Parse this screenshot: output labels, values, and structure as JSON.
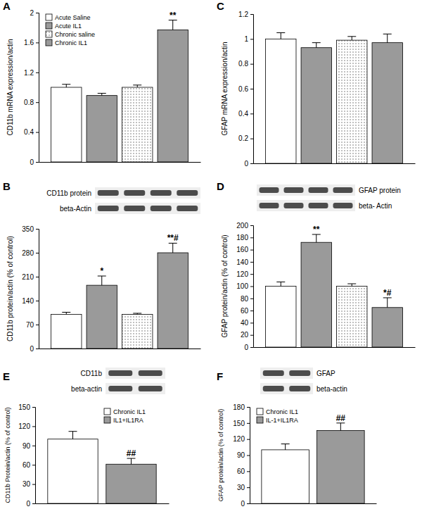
{
  "chart_data": [
    {
      "type": "bar",
      "panel_label": "A",
      "y_label": "CD11b mRNA expression/actin",
      "categories": [
        null
      ],
      "legend": "top-left",
      "series": [
        {
          "name": "Acute Saline",
          "color": "#ffffff",
          "values": [
            1.0
          ],
          "errors": [
            0.04
          ]
        },
        {
          "name": "Acute IL1",
          "color": "#9a9a9a",
          "values": [
            0.89
          ],
          "errors": [
            0.03
          ]
        },
        {
          "name": "Chronic saline",
          "color": "#ffffff",
          "marker": "dots",
          "values": [
            1.0
          ],
          "errors": [
            0.03
          ]
        },
        {
          "name": "Chronic IL1",
          "color": "#9a9a9a",
          "values": [
            1.77
          ],
          "errors": [
            0.13
          ],
          "annotations": [
            "**"
          ]
        }
      ],
      "ylim": [
        0,
        2
      ],
      "yticks": [
        0,
        0.4,
        0.8,
        1.2,
        1.6,
        2
      ]
    },
    {
      "type": "bar",
      "panel_label": "B",
      "y_label": "CD11b protein/actin (% of control)",
      "categories": [
        null
      ],
      "blot_labels": [
        "CD11b protein",
        "beta-Actin"
      ],
      "series": [
        {
          "color": "#ffffff",
          "values": [
            100
          ],
          "errors": [
            6
          ]
        },
        {
          "color": "#9a9a9a",
          "values": [
            185
          ],
          "errors": [
            27
          ],
          "annotations": [
            "*"
          ]
        },
        {
          "color": "#ffffff",
          "marker": "dots",
          "values": [
            100
          ],
          "errors": [
            3
          ]
        },
        {
          "color": "#9a9a9a",
          "values": [
            280
          ],
          "errors": [
            28
          ],
          "annotations": [
            "**#"
          ]
        }
      ],
      "ylim": [
        0,
        350
      ],
      "yticks": [
        0,
        70,
        140,
        210,
        280,
        350
      ]
    },
    {
      "type": "bar",
      "panel_label": "C",
      "y_label": "GFAP mRNA expression/actin",
      "categories": [
        null
      ],
      "series": [
        {
          "color": "#ffffff",
          "values": [
            1.0
          ],
          "errors": [
            0.05
          ]
        },
        {
          "color": "#9a9a9a",
          "values": [
            0.93
          ],
          "errors": [
            0.04
          ]
        },
        {
          "color": "#ffffff",
          "marker": "dots",
          "values": [
            0.99
          ],
          "errors": [
            0.03
          ]
        },
        {
          "color": "#9a9a9a",
          "values": [
            0.97
          ],
          "errors": [
            0.07
          ]
        }
      ],
      "ylim": [
        0,
        1.2
      ],
      "yticks": [
        0,
        0.2,
        0.4,
        0.6,
        0.8,
        1,
        1.2
      ]
    },
    {
      "type": "bar",
      "panel_label": "D",
      "y_label": "GFAP protein/actin (% of control)",
      "categories": [
        null
      ],
      "blot_labels": [
        "GFAP protein",
        "beta- Actin"
      ],
      "series": [
        {
          "color": "#ffffff",
          "values": [
            100
          ],
          "errors": [
            7
          ]
        },
        {
          "color": "#9a9a9a",
          "values": [
            172
          ],
          "errors": [
            13
          ],
          "annotations": [
            "**"
          ]
        },
        {
          "color": "#ffffff",
          "marker": "dots",
          "values": [
            100
          ],
          "errors": [
            4
          ]
        },
        {
          "color": "#9a9a9a",
          "values": [
            65
          ],
          "errors": [
            16
          ],
          "annotations": [
            "*#"
          ]
        }
      ],
      "ylim": [
        0,
        200
      ],
      "yticks": [
        0,
        20,
        40,
        60,
        80,
        100,
        120,
        140,
        160,
        180,
        200
      ]
    },
    {
      "type": "bar",
      "panel_label": "E",
      "y_label": "CD11b Protein/actin (% of control)",
      "categories": [
        null
      ],
      "legend": "top-right",
      "blot_labels": [
        "CD11b",
        "beta-actin"
      ],
      "series": [
        {
          "name": "Chronic IL1",
          "color": "#ffffff",
          "values": [
            100
          ],
          "errors": [
            12
          ]
        },
        {
          "name": "IL1+IL1RA",
          "color": "#9a9a9a",
          "values": [
            61
          ],
          "errors": [
            9
          ],
          "annotations": [
            "##"
          ]
        }
      ],
      "ylim": [
        0,
        150
      ],
      "yticks": [
        0,
        30,
        60,
        90,
        120,
        150
      ]
    },
    {
      "type": "bar",
      "panel_label": "F",
      "y_label": "GFAP protein/actin (% of control)",
      "categories": [
        null
      ],
      "legend": "top-left",
      "blot_labels": [
        "GFAP",
        "beta-actin"
      ],
      "series": [
        {
          "name": "Chronic IL1",
          "color": "#ffffff",
          "values": [
            100
          ],
          "errors": [
            11
          ]
        },
        {
          "name": "IL-1+IL1RA",
          "color": "#9a9a9a",
          "values": [
            136
          ],
          "errors": [
            14
          ],
          "annotations": [
            "##"
          ]
        }
      ],
      "ylim": [
        0,
        180
      ],
      "yticks": [
        0,
        30,
        60,
        90,
        120,
        150,
        180
      ]
    }
  ]
}
